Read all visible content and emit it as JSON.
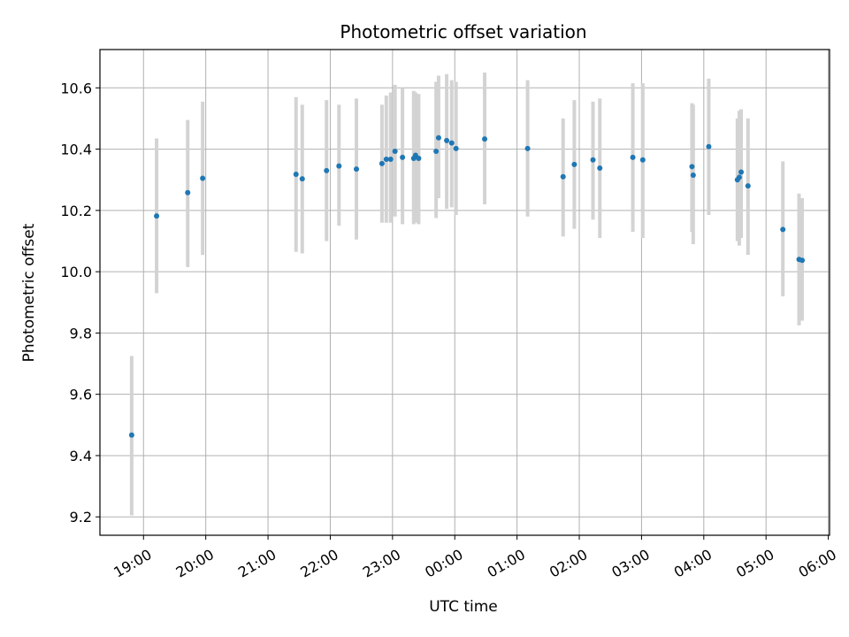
{
  "chart_data": {
    "type": "scatter",
    "title": "Photometric offset variation",
    "xlabel": "UTC time",
    "ylabel": "Photometric offset",
    "x_unit": "hours since 19:00 UTC",
    "xlim": [
      -0.7,
      11.02
    ],
    "ylim": [
      9.14,
      10.725
    ],
    "x_ticks": [
      {
        "value": 0,
        "label": "19:00"
      },
      {
        "value": 1,
        "label": "20:00"
      },
      {
        "value": 2,
        "label": "21:00"
      },
      {
        "value": 3,
        "label": "22:00"
      },
      {
        "value": 4,
        "label": "23:00"
      },
      {
        "value": 5,
        "label": "00:00"
      },
      {
        "value": 6,
        "label": "01:00"
      },
      {
        "value": 7,
        "label": "02:00"
      },
      {
        "value": 8,
        "label": "03:00"
      },
      {
        "value": 9,
        "label": "04:00"
      },
      {
        "value": 10,
        "label": "05:00"
      },
      {
        "value": 11,
        "label": "06:00"
      }
    ],
    "y_ticks": [
      {
        "value": 9.2,
        "label": "9.2"
      },
      {
        "value": 9.4,
        "label": "9.4"
      },
      {
        "value": 9.6,
        "label": "9.6"
      },
      {
        "value": 9.8,
        "label": "9.8"
      },
      {
        "value": 10.0,
        "label": "10.0"
      },
      {
        "value": 10.2,
        "label": "10.2"
      },
      {
        "value": 10.4,
        "label": "10.4"
      },
      {
        "value": 10.6,
        "label": "10.6"
      }
    ],
    "grid": true,
    "point_color": "#1f77b4",
    "errorbar_color": "#d3d3d3",
    "points": [
      {
        "x": -0.19,
        "y": 9.467,
        "lo": 9.205,
        "hi": 9.725
      },
      {
        "x": 0.21,
        "y": 10.182,
        "lo": 9.93,
        "hi": 10.435
      },
      {
        "x": 0.71,
        "y": 10.258,
        "lo": 10.015,
        "hi": 10.495
      },
      {
        "x": 0.95,
        "y": 10.305,
        "lo": 10.055,
        "hi": 10.555
      },
      {
        "x": 2.45,
        "y": 10.318,
        "lo": 10.065,
        "hi": 10.57
      },
      {
        "x": 2.55,
        "y": 10.303,
        "lo": 10.06,
        "hi": 10.545
      },
      {
        "x": 2.94,
        "y": 10.33,
        "lo": 10.1,
        "hi": 10.56
      },
      {
        "x": 3.14,
        "y": 10.345,
        "lo": 10.15,
        "hi": 10.545
      },
      {
        "x": 3.42,
        "y": 10.335,
        "lo": 10.105,
        "hi": 10.565
      },
      {
        "x": 3.83,
        "y": 10.353,
        "lo": 10.16,
        "hi": 10.545
      },
      {
        "x": 3.9,
        "y": 10.367,
        "lo": 10.16,
        "hi": 10.575
      },
      {
        "x": 3.97,
        "y": 10.367,
        "lo": 10.16,
        "hi": 10.585
      },
      {
        "x": 4.04,
        "y": 10.393,
        "lo": 10.18,
        "hi": 10.61
      },
      {
        "x": 4.16,
        "y": 10.373,
        "lo": 10.155,
        "hi": 10.6
      },
      {
        "x": 4.34,
        "y": 10.37,
        "lo": 10.155,
        "hi": 10.59
      },
      {
        "x": 4.37,
        "y": 10.38,
        "lo": 10.16,
        "hi": 10.585
      },
      {
        "x": 4.42,
        "y": 10.37,
        "lo": 10.155,
        "hi": 10.58
      },
      {
        "x": 4.7,
        "y": 10.393,
        "lo": 10.175,
        "hi": 10.62
      },
      {
        "x": 4.74,
        "y": 10.437,
        "lo": 10.24,
        "hi": 10.64
      },
      {
        "x": 4.87,
        "y": 10.428,
        "lo": 10.205,
        "hi": 10.645
      },
      {
        "x": 4.95,
        "y": 10.42,
        "lo": 10.21,
        "hi": 10.625
      },
      {
        "x": 5.02,
        "y": 10.402,
        "lo": 10.185,
        "hi": 10.62
      },
      {
        "x": 5.48,
        "y": 10.433,
        "lo": 10.22,
        "hi": 10.65
      },
      {
        "x": 6.17,
        "y": 10.402,
        "lo": 10.18,
        "hi": 10.625
      },
      {
        "x": 6.74,
        "y": 10.31,
        "lo": 10.115,
        "hi": 10.5
      },
      {
        "x": 6.92,
        "y": 10.35,
        "lo": 10.14,
        "hi": 10.56
      },
      {
        "x": 7.22,
        "y": 10.365,
        "lo": 10.17,
        "hi": 10.555
      },
      {
        "x": 7.33,
        "y": 10.338,
        "lo": 10.11,
        "hi": 10.565
      },
      {
        "x": 7.86,
        "y": 10.373,
        "lo": 10.13,
        "hi": 10.615
      },
      {
        "x": 8.02,
        "y": 10.365,
        "lo": 10.11,
        "hi": 10.615
      },
      {
        "x": 8.81,
        "y": 10.343,
        "lo": 10.13,
        "hi": 10.55
      },
      {
        "x": 8.83,
        "y": 10.315,
        "lo": 10.09,
        "hi": 10.545
      },
      {
        "x": 9.08,
        "y": 10.408,
        "lo": 10.185,
        "hi": 10.63
      },
      {
        "x": 9.54,
        "y": 10.3,
        "lo": 10.1,
        "hi": 10.5
      },
      {
        "x": 9.57,
        "y": 10.308,
        "lo": 10.085,
        "hi": 10.525
      },
      {
        "x": 9.6,
        "y": 10.325,
        "lo": 10.11,
        "hi": 10.53
      },
      {
        "x": 9.71,
        "y": 10.28,
        "lo": 10.055,
        "hi": 10.5
      },
      {
        "x": 10.27,
        "y": 10.138,
        "lo": 9.92,
        "hi": 10.36
      },
      {
        "x": 10.53,
        "y": 10.04,
        "lo": 9.825,
        "hi": 10.255
      },
      {
        "x": 10.58,
        "y": 10.037,
        "lo": 9.84,
        "hi": 10.24
      }
    ]
  }
}
